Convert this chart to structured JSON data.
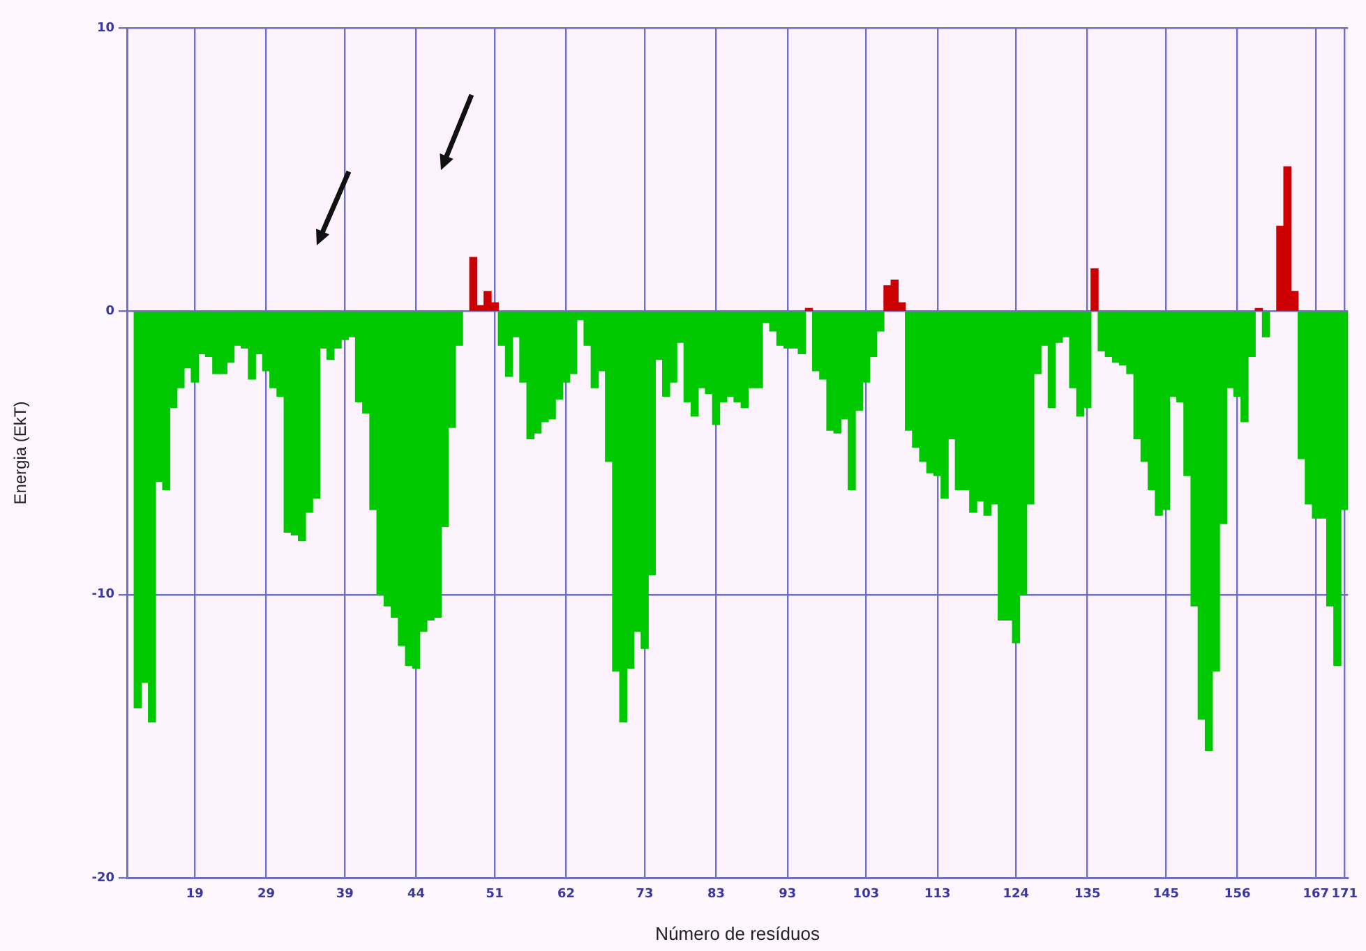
{
  "chart_data": {
    "type": "bar",
    "xlabel": "Número de resíduos",
    "ylabel": "Energia (EkT)",
    "categories": [
      null,
      null,
      null,
      null,
      null,
      null,
      null,
      null,
      null,
      "19",
      null,
      null,
      null,
      null,
      null,
      null,
      null,
      null,
      null,
      "29",
      null,
      null,
      null,
      null,
      null,
      null,
      null,
      null,
      null,
      null,
      "39",
      null,
      null,
      null,
      null,
      null,
      null,
      null,
      null,
      null,
      "44",
      null,
      null,
      null,
      null,
      null,
      null,
      null,
      null,
      null,
      null,
      "51",
      null,
      null,
      null,
      null,
      null,
      null,
      null,
      null,
      null,
      "62",
      null,
      null,
      null,
      null,
      null,
      null,
      null,
      null,
      null,
      null,
      "73",
      null,
      null,
      null,
      null,
      null,
      null,
      null,
      null,
      null,
      "83",
      null,
      null,
      null,
      null,
      null,
      null,
      null,
      null,
      null,
      "93",
      null,
      null,
      null,
      null,
      null,
      null,
      null,
      null,
      null,
      null,
      "103",
      null,
      null,
      null,
      null,
      null,
      null,
      null,
      null,
      null,
      "113",
      null,
      null,
      null,
      null,
      null,
      null,
      null,
      null,
      null,
      null,
      "124",
      null,
      null,
      null,
      null,
      null,
      null,
      null,
      null,
      null,
      "135",
      null,
      null,
      null,
      null,
      null,
      null,
      null,
      null,
      null,
      null,
      "145",
      null,
      null,
      null,
      null,
      null,
      null,
      null,
      null,
      null,
      "156",
      null,
      null,
      null,
      null,
      null,
      null,
      null,
      null,
      null,
      null,
      "167",
      null,
      null,
      null,
      "171"
    ],
    "values": [
      null,
      -14.0,
      -13.1,
      -14.5,
      -6.0,
      -6.3,
      -3.4,
      -2.7,
      -2.0,
      -2.5,
      -1.5,
      -1.6,
      -2.2,
      -2.2,
      -1.8,
      -1.2,
      -1.3,
      -2.4,
      -1.5,
      -2.1,
      -2.7,
      -3.0,
      -7.8,
      -7.9,
      -8.1,
      -7.1,
      -6.6,
      -1.3,
      -1.7,
      -1.3,
      -1.0,
      -0.9,
      -3.2,
      -3.6,
      -7.0,
      -10.0,
      -10.4,
      -10.8,
      -11.8,
      -12.5,
      -12.6,
      -11.3,
      -10.9,
      -10.8,
      -7.6,
      -4.1,
      -1.2,
      null,
      1.9,
      0.2,
      0.7,
      0.3,
      -1.2,
      -2.3,
      -0.9,
      -2.5,
      -4.5,
      -4.3,
      -3.9,
      -3.8,
      -3.1,
      -2.5,
      -2.2,
      -0.3,
      -1.2,
      -2.7,
      -2.1,
      -5.3,
      -12.7,
      -14.5,
      -12.6,
      -11.3,
      -11.9,
      -9.3,
      -1.7,
      -3.0,
      -2.5,
      -1.1,
      -3.2,
      -3.7,
      -2.7,
      -2.9,
      -4.0,
      -3.2,
      -3.0,
      -3.2,
      -3.4,
      -2.7,
      -2.7,
      -0.4,
      -0.7,
      -1.2,
      -1.3,
      -1.3,
      -1.5,
      0.1,
      -2.1,
      -2.4,
      -4.2,
      -4.3,
      -3.8,
      -6.3,
      -3.5,
      -2.5,
      -1.6,
      -0.7,
      0.9,
      1.1,
      0.3,
      -4.2,
      -4.8,
      -5.3,
      -5.7,
      -5.8,
      -6.6,
      -4.5,
      -6.3,
      -6.3,
      -7.1,
      -6.7,
      -7.2,
      -6.8,
      -10.9,
      -10.9,
      -11.7,
      -10.0,
      -6.8,
      -2.2,
      -1.2,
      -3.4,
      -1.1,
      -0.9,
      -2.7,
      -3.7,
      -3.4,
      1.5,
      -1.4,
      -1.6,
      -1.8,
      -1.9,
      -2.2,
      -4.5,
      -5.3,
      -6.3,
      -7.2,
      -7.0,
      -3.0,
      -3.2,
      -5.8,
      -10.4,
      -14.4,
      -15.5,
      -12.7,
      -7.5,
      -2.7,
      -3.0,
      -3.9,
      -1.6,
      0.1,
      -0.9,
      null,
      3.0,
      5.1,
      0.7,
      -5.2,
      -6.8,
      -7.3,
      -7.3,
      -10.4,
      -12.5,
      -7.0
    ],
    "colors": [
      "#00c800",
      "#00c800",
      "#00c800",
      "#00c800",
      "#00c800",
      "#00c800",
      "#00c800",
      "#00c800",
      "#00c800",
      "#00c800",
      "#00c800",
      "#00c800",
      "#00c800",
      "#00c800",
      "#00c800",
      "#00c800",
      "#00c800",
      "#00c800",
      "#00c800",
      "#00c800",
      "#00c800",
      "#00c800",
      "#00c800",
      "#00c800",
      "#00c800",
      "#00c800",
      "#00c800",
      "#00c800",
      "#00c800",
      "#00c800",
      "#00c800",
      "#00c800",
      "#00c800",
      "#00c800",
      "#00c800",
      "#00c800",
      "#00c800",
      "#00c800",
      "#00c800",
      "#00c800",
      "#00c800",
      "#00c800",
      "#00c800",
      "#00c800",
      "#00c800",
      "#00c800",
      "#00c800",
      "#00c800",
      "#cc0000",
      "#cc0000",
      "#cc0000",
      "#cc0000",
      "#00c800",
      "#00c800",
      "#00c800",
      "#00c800",
      "#00c800",
      "#00c800",
      "#00c800",
      "#00c800",
      "#00c800",
      "#00c800",
      "#00c800",
      "#00c800",
      "#00c800",
      "#00c800",
      "#00c800",
      "#00c800",
      "#00c800",
      "#00c800",
      "#00c800",
      "#00c800",
      "#00c800",
      "#00c800",
      "#00c800",
      "#00c800",
      "#00c800",
      "#00c800",
      "#00c800",
      "#00c800",
      "#00c800",
      "#00c800",
      "#00c800",
      "#00c800",
      "#00c800",
      "#00c800",
      "#00c800",
      "#00c800",
      "#00c800",
      "#00c800",
      "#00c800",
      "#00c800",
      "#00c800",
      "#00c800",
      "#00c800",
      "#cc0000",
      "#00c800",
      "#00c800",
      "#00c800",
      "#00c800",
      "#00c800",
      "#00c800",
      "#00c800",
      "#00c800",
      "#00c800",
      "#00c800",
      "#cc0000",
      "#cc0000",
      "#cc0000",
      "#00c800",
      "#00c800",
      "#00c800",
      "#00c800",
      "#00c800",
      "#00c800",
      "#00c800",
      "#00c800",
      "#00c800",
      "#00c800",
      "#00c800",
      "#00c800",
      "#00c800",
      "#00c800",
      "#00c800",
      "#00c800",
      "#00c800",
      "#00c800",
      "#00c800",
      "#00c800",
      "#00c800",
      "#00c800",
      "#00c800",
      "#00c800",
      "#00c800",
      "#00c800",
      "#cc0000",
      "#00c800",
      "#00c800",
      "#00c800",
      "#00c800",
      "#00c800",
      "#00c800",
      "#00c800",
      "#00c800",
      "#00c800",
      "#00c800",
      "#00c800",
      "#00c800",
      "#00c800",
      "#00c800",
      "#00c800",
      "#00c800",
      "#00c800",
      "#00c800",
      "#00c800",
      "#00c800",
      "#00c800",
      "#00c800",
      "#cc0000",
      "#00c800",
      "#00c800",
      "#cc0000",
      "#cc0000",
      "#cc0000",
      "#00c800",
      "#00c800",
      "#00c800",
      "#00c800",
      "#00c800",
      "#00c800",
      "#00c800"
    ],
    "ylim": [
      -20,
      10
    ],
    "yticks": [
      -20,
      -10,
      0,
      10
    ],
    "grid": true
  }
}
